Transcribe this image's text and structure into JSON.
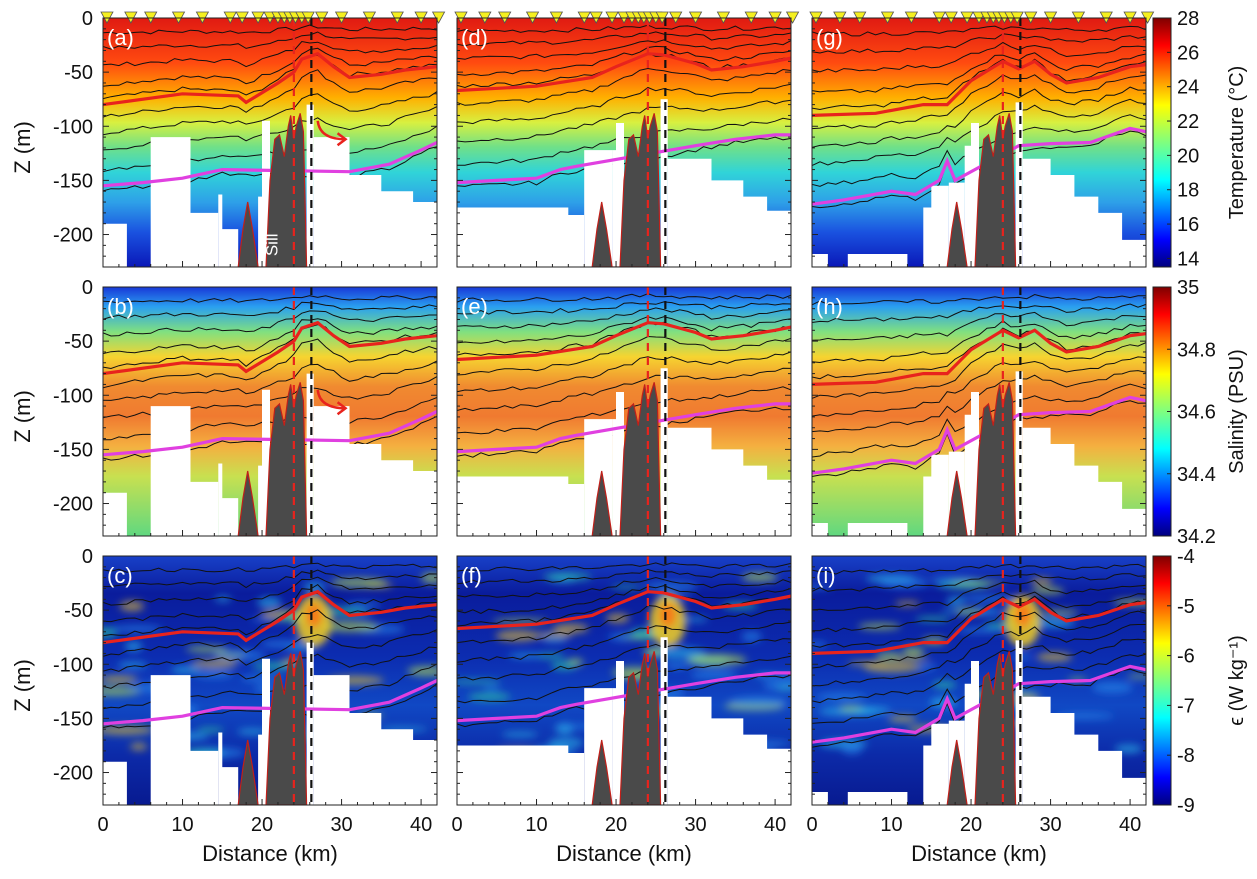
{
  "chart_data": {
    "type": "heatmap",
    "title": "",
    "layout": "3 x 3 grid of vertical sections",
    "x_axis": {
      "label": "Distance (km)",
      "range": [
        0,
        42
      ],
      "ticks": [
        0,
        10,
        20,
        30,
        40
      ],
      "tick_labels": [
        "0",
        "10",
        "20",
        "30",
        "40"
      ]
    },
    "y_axis": {
      "label": "Z (m)",
      "range": [
        -230,
        0
      ],
      "ticks": [
        0,
        -50,
        -100,
        -150,
        -200
      ],
      "tick_labels": [
        "0",
        "-50",
        "-100",
        "-150",
        "-200"
      ]
    },
    "rows": [
      {
        "variable": "temperature",
        "panels": [
          "(a)",
          "(d)",
          "(g)"
        ],
        "colorbar": {
          "label": "Temperature (°C)",
          "range": [
            13.5,
            28
          ],
          "ticks": [
            "28",
            "26",
            "24",
            "22",
            "20",
            "18",
            "16",
            "14"
          ]
        }
      },
      {
        "variable": "salinity",
        "panels": [
          "(b)",
          "(e)",
          "(h)"
        ],
        "colorbar": {
          "label": "Salinity (PSU)",
          "range": [
            34.2,
            35
          ],
          "ticks": [
            "35",
            "34.8",
            "34.6",
            "34.4",
            "34.2"
          ]
        }
      },
      {
        "variable": "dissipation",
        "panels": [
          "(c)",
          "(f)",
          "(i)"
        ],
        "colorbar": {
          "label": "ϵ (W kg⁻¹)",
          "range": [
            -9,
            -4
          ],
          "scale": "log10",
          "ticks": [
            "-4",
            "-5",
            "-6",
            "-7",
            "-8",
            "-9"
          ]
        }
      }
    ],
    "annotations": {
      "sill_label": "Sill",
      "sill_position_km": [
        22,
        24,
        25
      ],
      "red_dashed_line_km": 24,
      "black_dashed_line_km": 26.2,
      "station_markers": "yellow triangles along surface"
    },
    "isotherms": {
      "thin": "black contour lines",
      "highlight_upper": {
        "color": "#e8231d",
        "depth_m": [
          [
            [
              0,
              -80
            ],
            [
              10,
              -70
            ],
            [
              17,
              -72
            ],
            [
              18,
              -78
            ],
            [
              22,
              -60
            ],
            [
              24,
              -50
            ],
            [
              25,
              -38
            ],
            [
              27,
              -33
            ],
            [
              29,
              -45
            ],
            [
              31,
              -55
            ],
            [
              35,
              -52
            ],
            [
              38,
              -48
            ],
            [
              42,
              -45
            ]
          ],
          [
            [
              0,
              -67
            ],
            [
              10,
              -63
            ],
            [
              17,
              -55
            ],
            [
              20,
              -45
            ],
            [
              24,
              -33
            ],
            [
              26,
              -34
            ],
            [
              30,
              -42
            ],
            [
              32,
              -48
            ],
            [
              36,
              -45
            ],
            [
              40,
              -40
            ],
            [
              42,
              -37
            ]
          ],
          [
            [
              0,
              -90
            ],
            [
              8,
              -88
            ],
            [
              14,
              -80
            ],
            [
              17,
              -80
            ],
            [
              20,
              -58
            ],
            [
              24,
              -40
            ],
            [
              26,
              -47
            ],
            [
              28,
              -40
            ],
            [
              30,
              -52
            ],
            [
              32,
              -60
            ],
            [
              36,
              -55
            ],
            [
              40,
              -45
            ],
            [
              42,
              -43
            ]
          ]
        ]
      },
      "highlight_lower": {
        "color": "#e040e0",
        "depth_m": [
          [
            [
              0,
              -155
            ],
            [
              5,
              -152
            ],
            [
              10,
              -148
            ],
            [
              15,
              -140
            ],
            [
              31,
              -142
            ],
            [
              36,
              -135
            ],
            [
              40,
              -122
            ],
            [
              42,
              -115
            ]
          ],
          [
            [
              0,
              -152
            ],
            [
              5,
              -150
            ],
            [
              10,
              -148
            ],
            [
              13,
              -140
            ],
            [
              15,
              -137
            ],
            [
              26,
              -123
            ],
            [
              30,
              -118
            ],
            [
              35,
              -112
            ],
            [
              40,
              -108
            ],
            [
              42,
              -108
            ]
          ],
          [
            [
              0,
              -172
            ],
            [
              4,
              -168
            ],
            [
              10,
              -160
            ],
            [
              13,
              -163
            ],
            [
              16,
              -150
            ],
            [
              17,
              -132
            ],
            [
              18,
              -150
            ],
            [
              26,
              -118
            ],
            [
              30,
              -116
            ],
            [
              35,
              -115
            ],
            [
              40,
              -102
            ],
            [
              42,
              -105
            ]
          ]
        ]
      }
    },
    "bathymetry": [
      [
        17,
        -230
      ],
      [
        17.6,
        -195
      ],
      [
        18.2,
        -170
      ],
      [
        18.8,
        -195
      ],
      [
        19.5,
        -230
      ],
      [
        20.5,
        -230
      ],
      [
        21,
        -150
      ],
      [
        21.6,
        -112
      ],
      [
        22.2,
        -108
      ],
      [
        22.8,
        -128
      ],
      [
        23.3,
        -100
      ],
      [
        23.6,
        -90
      ],
      [
        24,
        -112
      ],
      [
        24.3,
        -100
      ],
      [
        24.8,
        -88
      ],
      [
        25.2,
        -105
      ],
      [
        25.6,
        -230
      ]
    ],
    "data_masks": [
      [
        [
          [
            0,
            -230
          ],
          [
            0,
            -190
          ],
          [
            3,
            -190
          ],
          [
            3,
            -230
          ]
        ],
        [
          [
            6,
            -230
          ],
          [
            6,
            -110
          ],
          [
            11,
            -110
          ],
          [
            11,
            -180
          ],
          [
            14.5,
            -180
          ],
          [
            14.5,
            -230
          ]
        ],
        [
          [
            14.5,
            -230
          ],
          [
            14.5,
            -163
          ],
          [
            15,
            -163
          ],
          [
            15,
            -195
          ],
          [
            17,
            -195
          ],
          [
            17,
            -230
          ]
        ],
        [
          [
            19.5,
            -230
          ],
          [
            19.5,
            -165
          ],
          [
            20,
            -165
          ],
          [
            20,
            -95
          ],
          [
            21,
            -95
          ],
          [
            21,
            -230
          ]
        ],
        [
          [
            25.6,
            -230
          ],
          [
            25.6,
            -80
          ],
          [
            26.5,
            -80
          ],
          [
            26.5,
            -230
          ]
        ],
        [
          [
            26.5,
            -230
          ],
          [
            26.5,
            -110
          ],
          [
            31,
            -110
          ],
          [
            31,
            -145
          ],
          [
            35,
            -145
          ],
          [
            35,
            -160
          ],
          [
            39,
            -160
          ],
          [
            39,
            -170
          ],
          [
            42.5,
            -170
          ],
          [
            42.5,
            -230
          ]
        ]
      ],
      [
        [
          [
            0,
            -230
          ],
          [
            0,
            -175
          ],
          [
            14,
            -175
          ],
          [
            14,
            -182
          ],
          [
            16,
            -182
          ],
          [
            16,
            -230
          ]
        ],
        [
          [
            16,
            -230
          ],
          [
            16,
            -122
          ],
          [
            19.5,
            -122
          ],
          [
            19.5,
            -230
          ]
        ],
        [
          [
            19.5,
            -230
          ],
          [
            19.5,
            -122
          ],
          [
            20,
            -122
          ],
          [
            20,
            -97
          ],
          [
            21,
            -97
          ],
          [
            21,
            -230
          ]
        ],
        [
          [
            25.6,
            -230
          ],
          [
            25.6,
            -75
          ],
          [
            26.5,
            -75
          ],
          [
            26.5,
            -230
          ]
        ],
        [
          [
            26.5,
            -230
          ],
          [
            26.5,
            -130
          ],
          [
            32,
            -130
          ],
          [
            32,
            -150
          ],
          [
            36,
            -150
          ],
          [
            36,
            -165
          ],
          [
            39,
            -165
          ],
          [
            39,
            -178
          ],
          [
            42.5,
            -178
          ],
          [
            42.5,
            -230
          ]
        ]
      ],
      [
        [
          [
            0,
            -230
          ],
          [
            0,
            -218
          ],
          [
            2,
            -218
          ],
          [
            2,
            -230
          ]
        ],
        [
          [
            4.5,
            -230
          ],
          [
            4.5,
            -218
          ],
          [
            12,
            -218
          ],
          [
            12,
            -230
          ]
        ],
        [
          [
            14,
            -230
          ],
          [
            14,
            -175
          ],
          [
            15,
            -175
          ],
          [
            15,
            -155
          ],
          [
            17.2,
            -155
          ],
          [
            17.2,
            -230
          ]
        ],
        [
          [
            17.2,
            -230
          ],
          [
            17.2,
            -152
          ],
          [
            19.2,
            -152
          ],
          [
            19.2,
            -230
          ]
        ],
        [
          [
            19.2,
            -230
          ],
          [
            19.2,
            -118
          ],
          [
            20,
            -118
          ],
          [
            20,
            -97
          ],
          [
            21,
            -97
          ],
          [
            21,
            -230
          ]
        ],
        [
          [
            25.6,
            -230
          ],
          [
            25.6,
            -78
          ],
          [
            26.5,
            -78
          ],
          [
            26.5,
            -230
          ]
        ],
        [
          [
            26.5,
            -230
          ],
          [
            26.5,
            -130
          ],
          [
            30,
            -130
          ],
          [
            30,
            -145
          ],
          [
            33,
            -145
          ],
          [
            33,
            -165
          ],
          [
            36,
            -165
          ],
          [
            36,
            -180
          ],
          [
            39,
            -180
          ],
          [
            39,
            -205
          ],
          [
            42.5,
            -205
          ],
          [
            42.5,
            -230
          ]
        ]
      ]
    ]
  }
}
